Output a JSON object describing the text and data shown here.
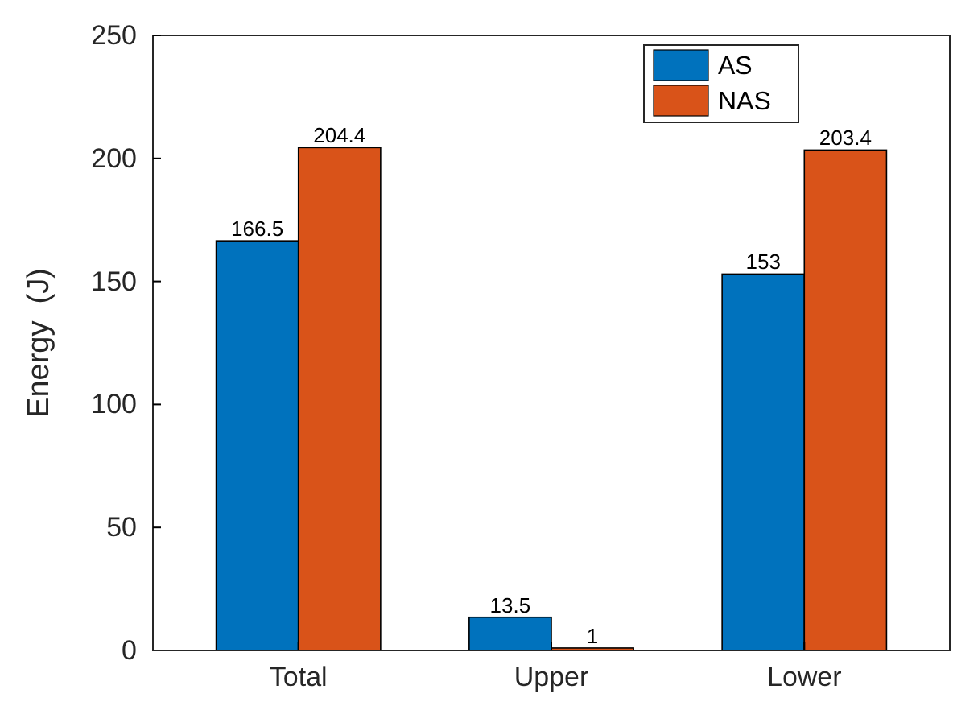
{
  "chart_data": {
    "type": "bar",
    "ylabel": "Energy  (J)",
    "categories": [
      "Total",
      "Upper",
      "Lower"
    ],
    "series": [
      {
        "name": "AS",
        "color": "#0072bd",
        "values": [
          166.5,
          13.5,
          153
        ]
      },
      {
        "name": "NAS",
        "color": "#d95319",
        "values": [
          204.4,
          1,
          203.4
        ]
      }
    ],
    "ylim": [
      0,
      250
    ],
    "yticks": [
      0,
      50,
      100,
      150,
      200,
      250
    ],
    "data_labels": true,
    "legend": "top right",
    "grid": false
  }
}
